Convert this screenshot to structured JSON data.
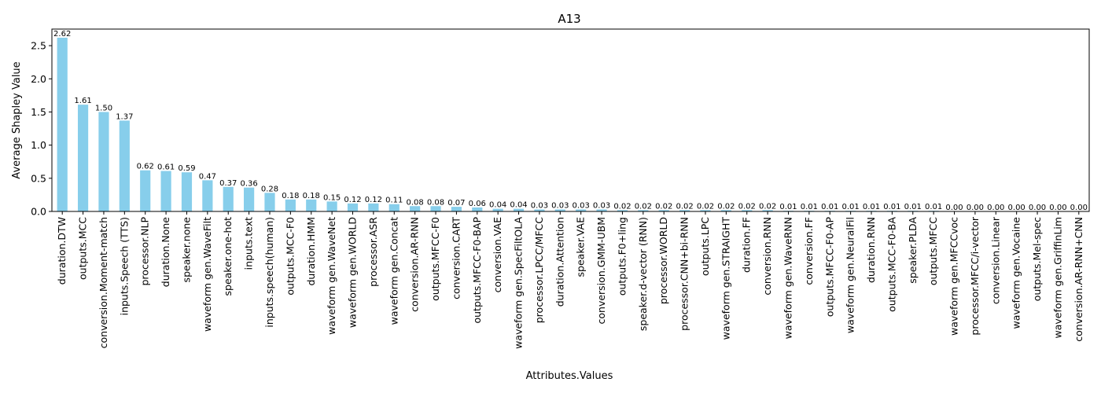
{
  "chart_data": {
    "type": "bar",
    "title": "A13",
    "xlabel": "Attributes.Values",
    "ylabel": "Average Shapley Value",
    "ylim": [
      0,
      2.75
    ],
    "yticks": [
      "0.0",
      "0.5",
      "1.0",
      "1.5",
      "2.0",
      "2.5"
    ],
    "ytick_values": [
      0,
      0.5,
      1.0,
      1.5,
      2.0,
      2.5
    ],
    "bar_color": "#87ceeb",
    "grid": false,
    "categories": [
      "duration.DTW",
      "outputs.MCC",
      "conversion.Moment-match",
      "inputs.Speech (TTS)",
      "processor.NLP",
      "duration.None",
      "speaker.none",
      "waveform gen.WaveFilt",
      "speaker.one-hot",
      "inputs.text",
      "inputs.speech(human)",
      "outputs.MCC-F0",
      "duration.HMM",
      "waveform gen.WaveNet",
      "waveform gen.WORLD",
      "processor.ASR",
      "waveform gen.Concat",
      "conversion.AR-RNN",
      "outputs.MFCC-F0",
      "conversion.CART",
      "outputs.MFCC-F0-BAP",
      "conversion.VAE",
      "waveform gen.SpecFiltOLA",
      "processor.LPCC/MFCC",
      "duration.Attention",
      "speaker.VAE",
      "conversion.GMM-UBM",
      "outputs.F0+ling",
      "speaker.d-vector (RNN)",
      "processor.WORLD",
      "processor.CNN+bi-RNN",
      "outputs.LPC",
      "waveform gen.STRAIGHT",
      "duration.FF",
      "conversion.RNN",
      "waveform gen.WaveRNN",
      "conversion.FF",
      "outputs.MFCC-F0-AP",
      "waveform gen.NeuralFil",
      "duration.RNN",
      "outputs.MCC-F0-BA",
      "speaker.PLDA",
      "outputs.MFCC",
      "waveform gen.MFCCvoc",
      "processor.MFCC/i-vector",
      "conversion.Linear",
      "waveform gen.Vocaine",
      "outputs.Mel-spec",
      "waveform gen.GriffinLim",
      "conversion.AR-RNN+CNN"
    ],
    "values": [
      2.62,
      1.61,
      1.5,
      1.37,
      0.62,
      0.61,
      0.59,
      0.47,
      0.37,
      0.36,
      0.28,
      0.18,
      0.18,
      0.15,
      0.12,
      0.12,
      0.11,
      0.08,
      0.08,
      0.07,
      0.06,
      0.04,
      0.04,
      0.03,
      0.03,
      0.03,
      0.03,
      0.02,
      0.02,
      0.02,
      0.02,
      0.02,
      0.02,
      0.02,
      0.02,
      0.01,
      0.01,
      0.01,
      0.01,
      0.01,
      0.01,
      0.01,
      0.01,
      0.0,
      0.0,
      0.0,
      0.0,
      0.0,
      0.0,
      0.0
    ],
    "data_labels": [
      "2.62",
      "1.61",
      "1.50",
      "1.37",
      "0.62",
      "0.61",
      "0.59",
      "0.47",
      "0.37",
      "0.36",
      "0.28",
      "0.18",
      "0.18",
      "0.15",
      "0.12",
      "0.12",
      "0.11",
      "0.08",
      "0.08",
      "0.07",
      "0.06",
      "0.04",
      "0.04",
      "0.03",
      "0.03",
      "0.03",
      "0.03",
      "0.02",
      "0.02",
      "0.02",
      "0.02",
      "0.02",
      "0.02",
      "0.02",
      "0.02",
      "0.01",
      "0.01",
      "0.01",
      "0.01",
      "0.01",
      "0.01",
      "0.01",
      "0.01",
      "0.00",
      "0.00",
      "0.00",
      "0.00",
      "0.00",
      "0.00",
      "0.00"
    ]
  }
}
